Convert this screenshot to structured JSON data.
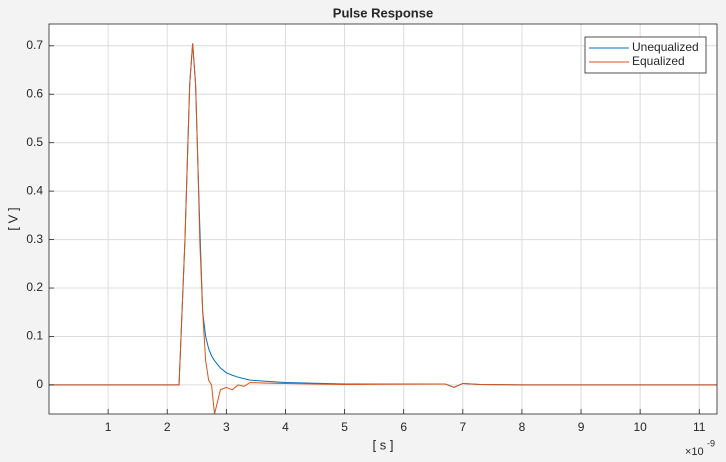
{
  "chart_data": {
    "type": "line",
    "title": "Pulse Response",
    "xlabel": "[ s ]",
    "ylabel": "[ V ]",
    "x_exponent": {
      "base": "×10",
      "power": "-9"
    },
    "x": [
      0,
      2.2,
      2.3,
      2.38,
      2.43,
      2.48,
      2.52,
      2.55,
      2.6,
      2.65,
      2.7,
      2.75,
      2.8,
      2.9,
      3.0,
      3.1,
      3.2,
      3.3,
      3.4,
      3.6,
      4,
      5,
      6.7,
      6.85,
      7,
      7.3,
      8,
      11.3
    ],
    "series": [
      {
        "name": "Unequalized",
        "color": "#0072bd",
        "values": [
          0,
          0,
          0.3,
          0.62,
          0.705,
          0.62,
          0.45,
          0.33,
          0.15,
          0.1,
          0.075,
          0.06,
          0.05,
          0.035,
          0.025,
          0.02,
          0.016,
          0.013,
          0.01,
          0.008,
          0.005,
          0.002,
          0.002,
          -0.005,
          0.003,
          0.001,
          0,
          0
        ]
      },
      {
        "name": "Equalized",
        "color": "#d95319",
        "values": [
          0,
          0,
          0.3,
          0.62,
          0.705,
          0.62,
          0.45,
          0.3,
          0.15,
          0.05,
          0.01,
          0.0,
          -0.06,
          -0.01,
          -0.005,
          -0.01,
          0.0,
          -0.003,
          0.005,
          0.004,
          0.003,
          0.001,
          0.002,
          -0.005,
          0.003,
          0.001,
          0,
          0
        ]
      }
    ],
    "xlim": [
      0,
      11.3
    ],
    "ylim": [
      -0.06,
      0.745
    ],
    "xticks": [
      1,
      2,
      3,
      4,
      5,
      6,
      7,
      8,
      9,
      10,
      11
    ],
    "yticks": [
      0,
      0.1,
      0.2,
      0.3,
      0.4,
      0.5,
      0.6,
      0.7
    ],
    "grid": true,
    "legend": "top-right"
  }
}
